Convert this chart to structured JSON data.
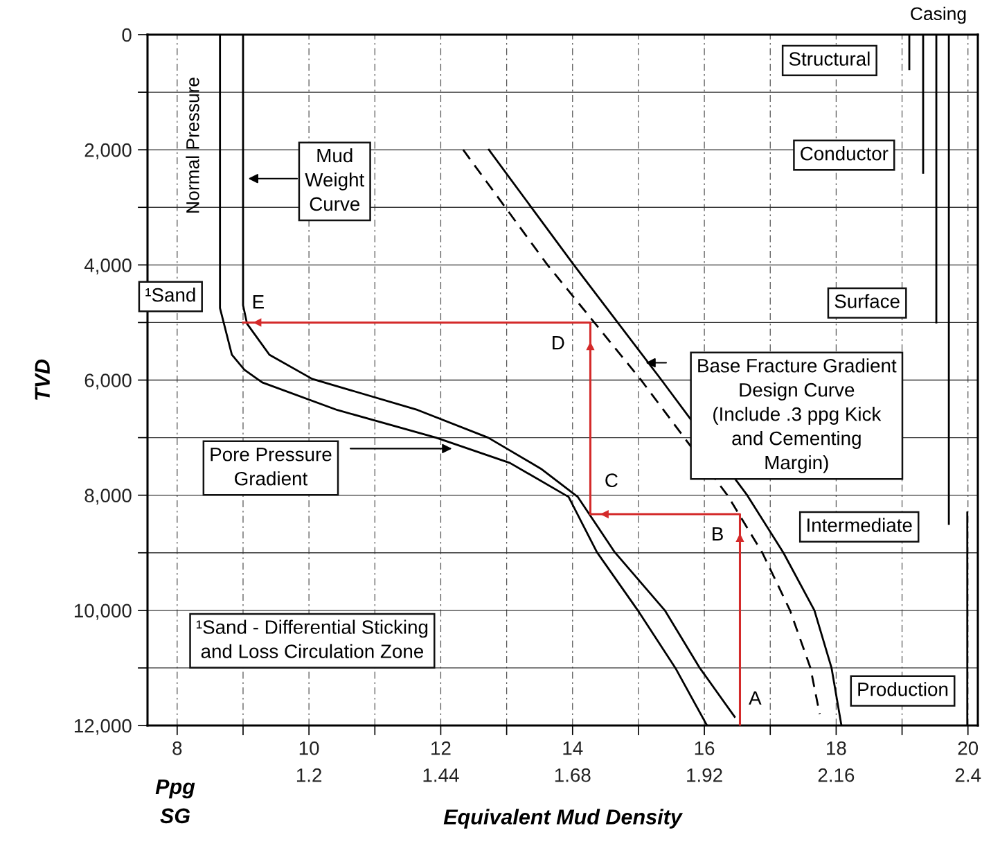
{
  "chart_data": {
    "type": "line",
    "xlabel": "Equivalent Mud Density",
    "ylabel": "TVD",
    "xlim": [
      7.55,
      20.15
    ],
    "ylim": [
      12000,
      0
    ],
    "xticks": [
      8,
      {
        "value": 9,
        "label": null
      },
      10,
      {
        "value": 11,
        "label": null
      },
      12,
      {
        "value": 13,
        "label": null
      },
      14,
      {
        "value": 15,
        "label": null
      },
      16,
      {
        "value": 17,
        "label": null
      },
      18,
      {
        "value": 19,
        "label": null
      },
      20
    ],
    "x2lim": [
      0.906,
      2.418
    ],
    "x2ticks": [
      1.2,
      1.44,
      1.68,
      1.92,
      2.16,
      2.4
    ],
    "yticks": [
      0,
      {
        "value": 1000,
        "label": null
      },
      {
        "value": 2000,
        "label": "2,000"
      },
      {
        "value": 3000,
        "label": null
      },
      {
        "value": 4000,
        "label": "4,000"
      },
      {
        "value": 5000,
        "label": null
      },
      {
        "value": 6000,
        "label": "6,000"
      },
      {
        "value": 7000,
        "label": null
      },
      {
        "value": 8000,
        "label": "8,000"
      },
      {
        "value": 9000,
        "label": null
      },
      {
        "value": 10000,
        "label": "10,000"
      },
      {
        "value": 11000,
        "label": null
      },
      {
        "value": 12000,
        "label": "12,000"
      }
    ],
    "grid": true,
    "marker": "none",
    "series": [
      {
        "color": "#000000",
        "line_style": "solid",
        "x": [
          8.65,
          8.65,
          8.65,
          8.83,
          9.02,
          9.29,
          10.43,
          11.93,
          13.05,
          13.94,
          14.37,
          14.99,
          15.56,
          16.04
        ],
        "values": [
          0,
          4500,
          4750,
          5560,
          5820,
          6040,
          6520,
          7000,
          7440,
          8030,
          8990,
          10000,
          11000,
          12000
        ]
      },
      {
        "color": "#000000",
        "line_style": "solid",
        "x": [
          9.0,
          9.0,
          9.06,
          9.4,
          10.05,
          11.65,
          12.72,
          13.52,
          14.08,
          14.64,
          15.4,
          15.93,
          16.46
        ],
        "values": [
          0,
          4700,
          5020,
          5560,
          5980,
          6520,
          7000,
          7540,
          8030,
          8990,
          10000,
          11000,
          11850
        ]
      },
      {
        "color": "#000000",
        "line_style": "dashed",
        "x": [
          12.34,
          13.62,
          15.04,
          16.35,
          16.88,
          17.3,
          17.61,
          17.75
        ],
        "values": [
          2000,
          4000,
          6000,
          8000,
          9000,
          10000,
          11000,
          11800
        ]
      },
      {
        "color": "#000000",
        "line_style": "solid",
        "x": [
          12.73,
          14.02,
          15.35,
          16.65,
          17.2,
          17.67,
          17.93,
          18.08
        ],
        "values": [
          2000,
          4000,
          6000,
          8000,
          9000,
          10000,
          11000,
          12000
        ]
      },
      {
        "color": "#d42a2a",
        "line_style": "solid",
        "x": [
          16.54,
          16.54,
          14.27,
          14.27,
          9.0
        ],
        "values": [
          12000,
          8330,
          8330,
          5000,
          5000
        ]
      },
      {
        "color": "#000000",
        "line_style": "solid",
        "x": [
          19.11,
          19.11
        ],
        "values": [
          0,
          600
        ]
      },
      {
        "color": "#000000",
        "line_style": "solid",
        "x": [
          19.32,
          19.32
        ],
        "values": [
          0,
          2400
        ]
      },
      {
        "color": "#000000",
        "line_style": "solid",
        "x": [
          19.52,
          19.52
        ],
        "values": [
          0,
          5000
        ]
      },
      {
        "color": "#000000",
        "line_style": "solid",
        "x": [
          19.71,
          19.71
        ],
        "values": [
          0,
          8500
        ]
      },
      {
        "color": "#000000",
        "line_style": "solid",
        "x": [
          19.99,
          19.99
        ],
        "values": [
          8300,
          12000
        ]
      }
    ],
    "annotations": [
      "Casing",
      "Structural",
      "Conductor",
      "Surface",
      "Intermediate",
      "Production",
      "Mud\nWeight\nCurve",
      "Pore Pressure\nGradient",
      "Base Fracture Gradient\nDesign Curve\n(Include .3 ppg Kick\nand Cementing\nMargin)",
      "Normal Pressure",
      "¹Sand",
      "¹Sand - Differential Sticking\nand Loss Circulation Zone",
      "A",
      "B",
      "C",
      "D",
      "E",
      "Ppg",
      "SG"
    ]
  }
}
